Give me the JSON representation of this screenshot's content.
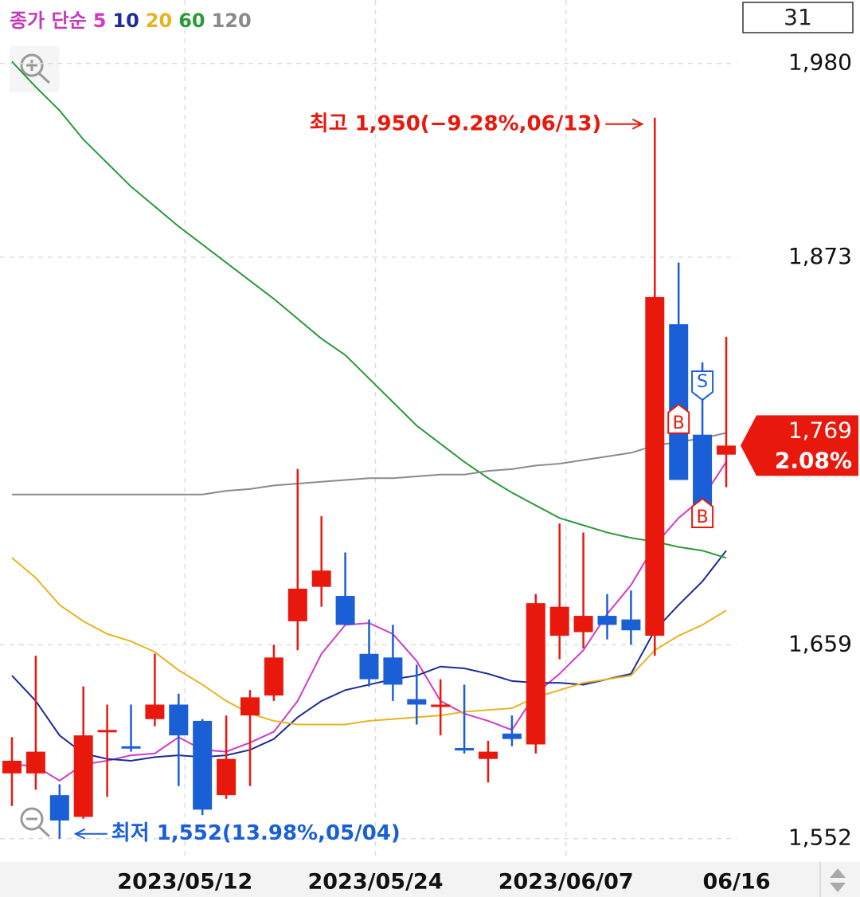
{
  "legend_title": "종가 단순",
  "visible_count": 31,
  "chart_data": {
    "type": "candlestick",
    "categories": [
      null,
      null,
      null,
      null,
      null,
      null,
      null,
      "2023/05/12",
      null,
      null,
      null,
      null,
      null,
      null,
      null,
      "2023/05/24",
      null,
      null,
      null,
      null,
      null,
      null,
      null,
      "2023/06/07",
      null,
      null,
      null,
      null,
      null,
      null,
      "06/16"
    ],
    "open": [
      1588,
      1588,
      1576,
      1564,
      1612,
      1603,
      1618,
      1626,
      1617,
      1576,
      1620,
      1631,
      1672,
      1691,
      1686,
      1654,
      1652,
      1629,
      1625,
      1602,
      1596,
      1610,
      1604,
      1664,
      1666,
      1675,
      1673,
      1664,
      1836,
      1775,
      1764
    ],
    "high": [
      1608,
      1653,
      1582,
      1636,
      1626,
      1626,
      1654,
      1632,
      1618,
      1620,
      1634,
      1659,
      1756,
      1730,
      1710,
      1673,
      1670,
      1648,
      1640,
      1637,
      1606,
      1620,
      1687,
      1726,
      1721,
      1687,
      1689,
      1950,
      1870,
      1815,
      1829
    ],
    "low": [
      1570,
      1579,
      1552,
      1563,
      1575,
      1600,
      1614,
      1581,
      1565,
      1574,
      1581,
      1628,
      1656,
      1680,
      1670,
      1636,
      1628,
      1615,
      1609,
      1599,
      1583,
      1603,
      1599,
      1651,
      1657,
      1662,
      1659,
      1653,
      1750,
      1733,
      1746
    ],
    "close": [
      1595,
      1600,
      1562,
      1609,
      1612,
      1602,
      1626,
      1609,
      1568,
      1596,
      1630,
      1652,
      1690,
      1700,
      1670,
      1640,
      1637,
      1626,
      1626,
      1601,
      1600,
      1607,
      1682,
      1680,
      1675,
      1670,
      1667,
      1851,
      1750,
      1733,
      1769
    ],
    "up_color": "#e8190c",
    "down_color": "#1a5fd6",
    "series": [
      {
        "name": "5",
        "color": "#d23ac6",
        "values": [
          1593,
          1592,
          1584,
          1593,
          1595,
          1598,
          1599,
          1608,
          1601,
          1600,
          1605,
          1611,
          1628,
          1654,
          1670,
          1671,
          1665,
          1650,
          1628,
          1621,
          1617,
          1612,
          1632,
          1643,
          1656,
          1676,
          1692,
          1714,
          1729,
          1740,
          1760
        ]
      },
      {
        "name": "10",
        "color": "#1c2c94",
        "values": [
          1642,
          1628,
          1609,
          1599,
          1596,
          1595,
          1597,
          1598,
          1597,
          1598,
          1601,
          1607,
          1619,
          1628,
          1634,
          1637,
          1640,
          1642,
          1647,
          1646,
          1643,
          1639,
          1638,
          1638,
          1637,
          1640,
          1643,
          1667,
          1681,
          1694,
          1711
        ]
      },
      {
        "name": "20",
        "color": "#e6b420",
        "values": [
          1707,
          1696,
          1681,
          1672,
          1665,
          1661,
          1655,
          1645,
          1637,
          1628,
          1621,
          1617,
          1615,
          1615,
          1615,
          1617,
          1618,
          1619,
          1620,
          1622,
          1623,
          1624,
          1630,
          1634,
          1638,
          1640,
          1642,
          1656,
          1664,
          1670,
          1678
        ]
      },
      {
        "name": "60",
        "color": "#2a9a3a",
        "values": [
          1981,
          1967,
          1954,
          1938,
          1925,
          1912,
          1901,
          1890,
          1880,
          1870,
          1860,
          1850,
          1839,
          1828,
          1819,
          1806,
          1793,
          1780,
          1770,
          1760,
          1751,
          1743,
          1736,
          1729,
          1725,
          1721,
          1718,
          1716,
          1713,
          1711,
          1707
        ]
      },
      {
        "name": "120",
        "color": "#8a8a8a",
        "values": [
          1742,
          1742,
          1742,
          1742,
          1742,
          1742,
          1742,
          1742,
          1742,
          1744,
          1745,
          1747,
          1748,
          1749,
          1750,
          1751,
          1751,
          1752,
          1753,
          1753,
          1755,
          1756,
          1758,
          1759,
          1761,
          1763,
          1765,
          1769,
          1771,
          1773,
          1776
        ]
      }
    ],
    "ylim": [
      1540,
      2015
    ],
    "yticks": [
      {
        "value": 1552,
        "label": "1,552"
      },
      {
        "value": 1659,
        "label": "1,659"
      },
      {
        "value": 1873,
        "label": "1,873"
      },
      {
        "value": 1980,
        "label": "1,980"
      }
    ],
    "grid": true,
    "high_annotation": "최고 1,950(−9.28%,06/13)",
    "low_annotation": "최저 1,552(13.98%,05/04)",
    "last_price": {
      "value": 1769,
      "label": "1,769"
    },
    "change_label": {
      "value": 2.08,
      "label": "2.08%"
    },
    "signals": [
      {
        "index": 28,
        "label": "B",
        "price": 1782
      },
      {
        "index": 29,
        "label": "S",
        "price": 1803
      },
      {
        "index": 29,
        "label": "B",
        "price": 1730
      }
    ]
  }
}
